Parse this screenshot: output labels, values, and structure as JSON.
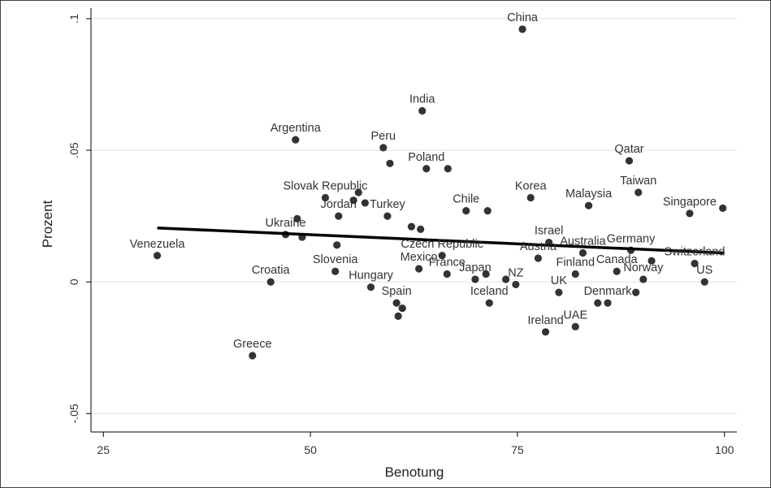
{
  "chart_data": {
    "type": "scatter",
    "xlabel": "Benotung",
    "ylabel": "Prozent",
    "xlim": [
      23.5,
      101.5
    ],
    "ylim": [
      -0.057,
      0.104
    ],
    "xticks": [
      25,
      50,
      75,
      100
    ],
    "xtick_labels": [
      "25",
      "50",
      "75",
      "100"
    ],
    "yticks": [
      -0.05,
      0,
      0.05,
      0.1
    ],
    "ytick_labels": [
      "-.05",
      "0",
      ".05",
      ".1"
    ],
    "grid": "horizontal",
    "point_color": "#333333",
    "line_color": "#000000",
    "fit_line": {
      "x": [
        31.5,
        100
      ],
      "y": [
        0.0205,
        0.011
      ]
    },
    "points": [
      {
        "x": 31.5,
        "y": 0.01,
        "label": "Venezuela"
      },
      {
        "x": 43.0,
        "y": -0.028,
        "label": "Greece"
      },
      {
        "x": 45.2,
        "y": 0.0,
        "label": "Croatia"
      },
      {
        "x": 47.0,
        "y": 0.018,
        "label": "Ukraine"
      },
      {
        "x": 48.2,
        "y": 0.054,
        "label": "Argentina"
      },
      {
        "x": 48.4,
        "y": 0.024,
        "label": ""
      },
      {
        "x": 49.0,
        "y": 0.017,
        "label": ""
      },
      {
        "x": 51.8,
        "y": 0.032,
        "label": "Slovak Republic"
      },
      {
        "x": 53.0,
        "y": 0.004,
        "label": "Slovenia"
      },
      {
        "x": 53.2,
        "y": 0.014,
        "label": ""
      },
      {
        "x": 53.4,
        "y": 0.025,
        "label": "Jordan"
      },
      {
        "x": 55.2,
        "y": 0.031,
        "label": ""
      },
      {
        "x": 55.8,
        "y": 0.034,
        "label": ""
      },
      {
        "x": 56.6,
        "y": 0.03,
        "label": ""
      },
      {
        "x": 57.3,
        "y": -0.002,
        "label": "Hungary"
      },
      {
        "x": 58.8,
        "y": 0.051,
        "label": "Peru"
      },
      {
        "x": 59.3,
        "y": 0.025,
        "label": "Turkey"
      },
      {
        "x": 59.6,
        "y": 0.045,
        "label": ""
      },
      {
        "x": 60.4,
        "y": -0.008,
        "label": "Spain"
      },
      {
        "x": 60.6,
        "y": -0.013,
        "label": ""
      },
      {
        "x": 61.1,
        "y": -0.01,
        "label": ""
      },
      {
        "x": 62.2,
        "y": 0.021,
        "label": ""
      },
      {
        "x": 63.1,
        "y": 0.005,
        "label": "Mexico"
      },
      {
        "x": 63.3,
        "y": 0.02,
        "label": ""
      },
      {
        "x": 63.5,
        "y": 0.065,
        "label": "India"
      },
      {
        "x": 64.0,
        "y": 0.043,
        "label": "Poland"
      },
      {
        "x": 65.9,
        "y": 0.01,
        "label": "Czech Republic"
      },
      {
        "x": 66.5,
        "y": 0.003,
        "label": "France"
      },
      {
        "x": 66.6,
        "y": 0.043,
        "label": ""
      },
      {
        "x": 68.8,
        "y": 0.027,
        "label": "Chile"
      },
      {
        "x": 69.9,
        "y": 0.001,
        "label": "Japan"
      },
      {
        "x": 71.2,
        "y": 0.003,
        "label": ""
      },
      {
        "x": 71.4,
        "y": 0.027,
        "label": ""
      },
      {
        "x": 71.6,
        "y": -0.008,
        "label": "Iceland"
      },
      {
        "x": 73.6,
        "y": 0.001,
        "label": ""
      },
      {
        "x": 74.8,
        "y": -0.001,
        "label": "NZ"
      },
      {
        "x": 75.6,
        "y": 0.096,
        "label": "China"
      },
      {
        "x": 76.6,
        "y": 0.032,
        "label": "Korea"
      },
      {
        "x": 77.5,
        "y": 0.009,
        "label": "Austria"
      },
      {
        "x": 78.4,
        "y": -0.019,
        "label": "Ireland"
      },
      {
        "x": 78.8,
        "y": 0.015,
        "label": "Israel"
      },
      {
        "x": 80.0,
        "y": -0.004,
        "label": "UK"
      },
      {
        "x": 82.0,
        "y": 0.003,
        "label": "Finland"
      },
      {
        "x": 82.0,
        "y": -0.017,
        "label": "UAE"
      },
      {
        "x": 82.9,
        "y": 0.011,
        "label": "Australia"
      },
      {
        "x": 83.6,
        "y": 0.029,
        "label": "Malaysia"
      },
      {
        "x": 84.7,
        "y": -0.008,
        "label": ""
      },
      {
        "x": 85.9,
        "y": -0.008,
        "label": "Denmark"
      },
      {
        "x": 87.0,
        "y": 0.004,
        "label": "Canada"
      },
      {
        "x": 88.5,
        "y": 0.046,
        "label": "Qatar"
      },
      {
        "x": 88.7,
        "y": 0.012,
        "label": "Germany"
      },
      {
        "x": 89.3,
        "y": -0.004,
        "label": ""
      },
      {
        "x": 89.6,
        "y": 0.034,
        "label": "Taiwan"
      },
      {
        "x": 90.2,
        "y": 0.001,
        "label": "Norway"
      },
      {
        "x": 91.2,
        "y": 0.008,
        "label": ""
      },
      {
        "x": 95.8,
        "y": 0.026,
        "label": "Singapore"
      },
      {
        "x": 96.4,
        "y": 0.007,
        "label": "Switzerland"
      },
      {
        "x": 97.6,
        "y": 0.0,
        "label": "US"
      },
      {
        "x": 99.8,
        "y": 0.028,
        "label": ""
      }
    ]
  }
}
